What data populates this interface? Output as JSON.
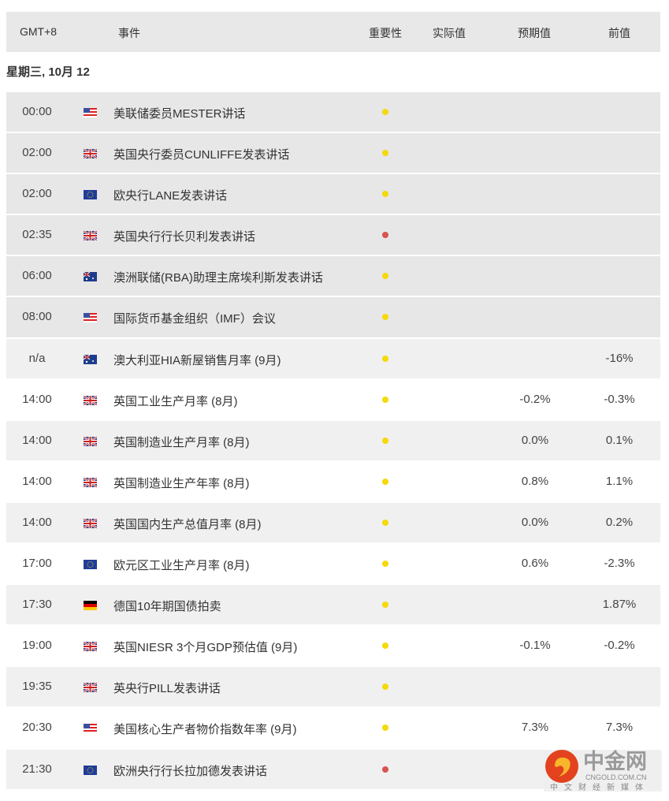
{
  "header": {
    "timezone": "GMT+8",
    "event": "事件",
    "importance": "重要性",
    "actual": "实际值",
    "forecast": "预期值",
    "previous": "前值"
  },
  "date": "星期三, 10月 12",
  "colors": {
    "importance_low": "#f5d90a",
    "importance_high": "#d9534f"
  },
  "rows": [
    {
      "time": "00:00",
      "flag": "us",
      "event": "美联储委员MESTER讲话",
      "importance": "low",
      "actual": "",
      "forecast": "",
      "previous": ""
    },
    {
      "time": "02:00",
      "flag": "uk",
      "event": "英国央行委员CUNLIFFE发表讲话",
      "importance": "low",
      "actual": "",
      "forecast": "",
      "previous": ""
    },
    {
      "time": "02:00",
      "flag": "eu",
      "event": "欧央行LANE发表讲话",
      "importance": "low",
      "actual": "",
      "forecast": "",
      "previous": ""
    },
    {
      "time": "02:35",
      "flag": "uk",
      "event": "英国央行行长贝利发表讲话",
      "importance": "high",
      "actual": "",
      "forecast": "",
      "previous": ""
    },
    {
      "time": "06:00",
      "flag": "au",
      "event": "澳洲联储(RBA)助理主席埃利斯发表讲话",
      "importance": "low",
      "actual": "",
      "forecast": "",
      "previous": ""
    },
    {
      "time": "08:00",
      "flag": "us",
      "event": "国际货币基金组织（IMF）会议",
      "importance": "low",
      "actual": "",
      "forecast": "",
      "previous": ""
    },
    {
      "time": "n/a",
      "flag": "au",
      "event": "澳大利亚HIA新屋销售月率 (9月)",
      "importance": "low",
      "actual": "",
      "forecast": "",
      "previous": "-16%"
    },
    {
      "time": "14:00",
      "flag": "uk",
      "event": "英国工业生产月率 (8月)",
      "importance": "low",
      "actual": "",
      "forecast": "-0.2%",
      "previous": "-0.3%"
    },
    {
      "time": "14:00",
      "flag": "uk",
      "event": "英国制造业生产月率 (8月)",
      "importance": "low",
      "actual": "",
      "forecast": "0.0%",
      "previous": "0.1%"
    },
    {
      "time": "14:00",
      "flag": "uk",
      "event": "英国制造业生产年率 (8月)",
      "importance": "low",
      "actual": "",
      "forecast": "0.8%",
      "previous": "1.1%"
    },
    {
      "time": "14:00",
      "flag": "uk",
      "event": "英国国内生产总值月率 (8月)",
      "importance": "low",
      "actual": "",
      "forecast": "0.0%",
      "previous": "0.2%"
    },
    {
      "time": "17:00",
      "flag": "eu",
      "event": "欧元区工业生产月率 (8月)",
      "importance": "low",
      "actual": "",
      "forecast": "0.6%",
      "previous": "-2.3%"
    },
    {
      "time": "17:30",
      "flag": "de",
      "event": "德国10年期国债拍卖",
      "importance": "low",
      "actual": "",
      "forecast": "",
      "previous": "1.87%"
    },
    {
      "time": "19:00",
      "flag": "uk",
      "event": "英国NIESR 3个月GDP预估值 (9月)",
      "importance": "low",
      "actual": "",
      "forecast": "-0.1%",
      "previous": "-0.2%"
    },
    {
      "time": "19:35",
      "flag": "uk",
      "event": "英央行PILL发表讲话",
      "importance": "low",
      "actual": "",
      "forecast": "",
      "previous": ""
    },
    {
      "time": "20:30",
      "flag": "us",
      "event": "美国核心生产者物价指数年率 (9月)",
      "importance": "low",
      "actual": "",
      "forecast": "7.3%",
      "previous": "7.3%"
    },
    {
      "time": "21:30",
      "flag": "eu",
      "event": "欧洲央行行长拉加德发表讲话",
      "importance": "high",
      "actual": "",
      "forecast": "",
      "previous": ""
    }
  ],
  "watermark": {
    "name": "中金网",
    "domain": "CNGOLD.COM.CN",
    "tagline": "中文财经新媒体"
  }
}
